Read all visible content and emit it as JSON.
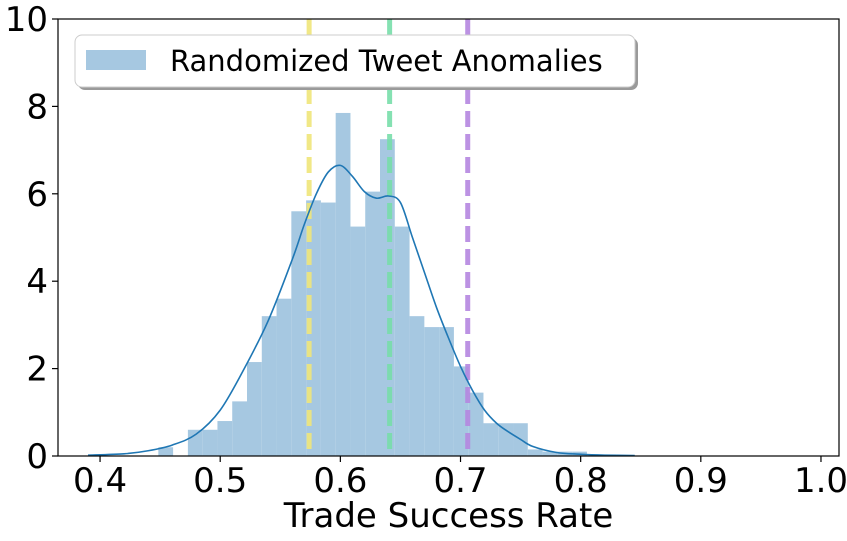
{
  "chart_data": {
    "type": "bar",
    "title": "",
    "xlabel": "Trade Success Rate",
    "ylabel": "",
    "xlim": [
      0.365,
      1.015
    ],
    "ylim": [
      0,
      10
    ],
    "x_ticks": [
      0.4,
      0.5,
      0.6,
      0.7,
      0.8,
      0.9,
      1.0
    ],
    "x_tick_labels": [
      "0.4",
      "0.5",
      "0.6",
      "0.7",
      "0.8",
      "0.9",
      "1.0"
    ],
    "y_ticks": [
      0,
      2,
      4,
      6,
      8,
      10
    ],
    "y_tick_labels": [
      "0",
      "2",
      "4",
      "6",
      "8",
      "10"
    ],
    "grid": false,
    "legend": {
      "placement": "top-left",
      "entries": [
        "Randomized Tweet Anomalies"
      ]
    },
    "histogram": {
      "name": "Randomized Tweet Anomalies",
      "color": "#a6c8e1",
      "bin_width": 0.0123,
      "bins": [
        {
          "x0": 0.4485,
          "height": 0.2
        },
        {
          "x0": 0.4731,
          "height": 0.6
        },
        {
          "x0": 0.4854,
          "height": 0.6
        },
        {
          "x0": 0.4977,
          "height": 0.8
        },
        {
          "x0": 0.51,
          "height": 1.25
        },
        {
          "x0": 0.5223,
          "height": 2.15
        },
        {
          "x0": 0.5346,
          "height": 3.2
        },
        {
          "x0": 0.5469,
          "height": 3.6
        },
        {
          "x0": 0.5592,
          "height": 5.6
        },
        {
          "x0": 0.5715,
          "height": 5.85
        },
        {
          "x0": 0.5838,
          "height": 5.8
        },
        {
          "x0": 0.5961,
          "height": 7.85
        },
        {
          "x0": 0.6084,
          "height": 5.25
        },
        {
          "x0": 0.6207,
          "height": 6.05
        },
        {
          "x0": 0.633,
          "height": 7.25
        },
        {
          "x0": 0.6453,
          "height": 5.25
        },
        {
          "x0": 0.6576,
          "height": 3.2
        },
        {
          "x0": 0.6699,
          "height": 2.95
        },
        {
          "x0": 0.6822,
          "height": 2.95
        },
        {
          "x0": 0.6945,
          "height": 2.05
        },
        {
          "x0": 0.7068,
          "height": 1.45
        },
        {
          "x0": 0.7191,
          "height": 0.75
        },
        {
          "x0": 0.7314,
          "height": 0.75
        },
        {
          "x0": 0.7437,
          "height": 0.75
        },
        {
          "x0": 0.756,
          "height": 0.15
        },
        {
          "x0": 0.7683,
          "height": 0.1
        },
        {
          "x0": 0.7806,
          "height": 0.1
        },
        {
          "x0": 0.7929,
          "height": 0.1
        }
      ]
    },
    "kde": {
      "color": "#1f77b4",
      "x": [
        0.39,
        0.42,
        0.44,
        0.46,
        0.48,
        0.5,
        0.52,
        0.54,
        0.56,
        0.57,
        0.58,
        0.59,
        0.6,
        0.61,
        0.62,
        0.63,
        0.64,
        0.65,
        0.66,
        0.67,
        0.68,
        0.69,
        0.7,
        0.71,
        0.72,
        0.73,
        0.74,
        0.75,
        0.76,
        0.78,
        0.8,
        0.82,
        0.845
      ],
      "y": [
        0.02,
        0.05,
        0.12,
        0.25,
        0.5,
        1.05,
        2.0,
        3.1,
        4.5,
        5.3,
        6.0,
        6.5,
        6.65,
        6.4,
        6.05,
        5.9,
        5.95,
        5.8,
        5.0,
        4.2,
        3.4,
        2.7,
        2.05,
        1.5,
        1.05,
        0.75,
        0.55,
        0.38,
        0.22,
        0.08,
        0.04,
        0.02,
        0.01
      ]
    },
    "reference_lines": [
      {
        "x": 0.574,
        "color": "#f0e67a",
        "style": "dashed"
      },
      {
        "x": 0.641,
        "color": "#78deaa",
        "style": "dashed"
      },
      {
        "x": 0.706,
        "color": "#b587e0",
        "style": "dashed"
      }
    ]
  }
}
